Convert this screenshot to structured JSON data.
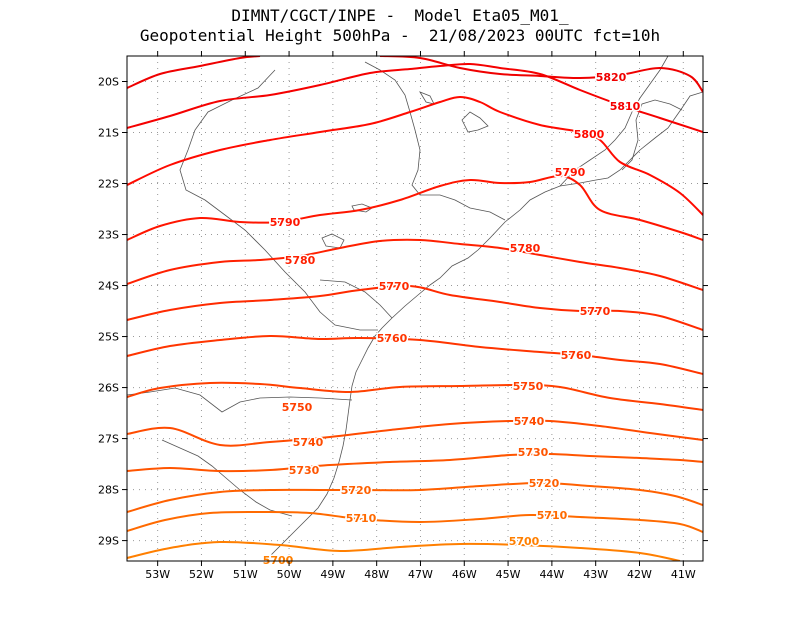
{
  "title": {
    "line1": "DIMNT/CGCT/INPE -  Model Eta05_M01_",
    "line2": "Geopotential Height 500hPa -  21/08/2023 00UTC fct=10h"
  },
  "map": {
    "lat_labels": [
      "20S",
      "21S",
      "22S",
      "23S",
      "24S",
      "25S",
      "26S",
      "27S",
      "28S",
      "29S"
    ],
    "lon_labels": [
      "53W",
      "52W",
      "51W",
      "50W",
      "49W",
      "48W",
      "47W",
      "46W",
      "45W",
      "44W",
      "43W",
      "42W",
      "41W"
    ],
    "lat_range": [
      -29.4,
      -19.5
    ],
    "lon_range": [
      -53.7,
      -40.55
    ]
  },
  "contours": [
    {
      "value": 5700,
      "label": "5700",
      "color": "#ff7f00"
    },
    {
      "value": 5710,
      "label": "5710",
      "color": "#ff6a00"
    },
    {
      "value": 5720,
      "label": "5720",
      "color": "#ff6000"
    },
    {
      "value": 5730,
      "label": "5730",
      "color": "#ff5500"
    },
    {
      "value": 5740,
      "label": "5740",
      "color": "#ff4b00"
    },
    {
      "value": 5750,
      "label": "5750",
      "color": "#ff4000"
    },
    {
      "value": 5760,
      "label": "5760",
      "color": "#ff3500"
    },
    {
      "value": 5770,
      "label": "5770",
      "color": "#ff2a00"
    },
    {
      "value": 5780,
      "label": "5780",
      "color": "#ff2000"
    },
    {
      "value": 5790,
      "label": "5790",
      "color": "#ff1500"
    },
    {
      "value": 5800,
      "label": "5800",
      "color": "#ff0a00"
    },
    {
      "value": 5810,
      "label": "5810",
      "color": "#f50000"
    },
    {
      "value": 5820,
      "label": "5820",
      "color": "#ef0000"
    }
  ]
}
